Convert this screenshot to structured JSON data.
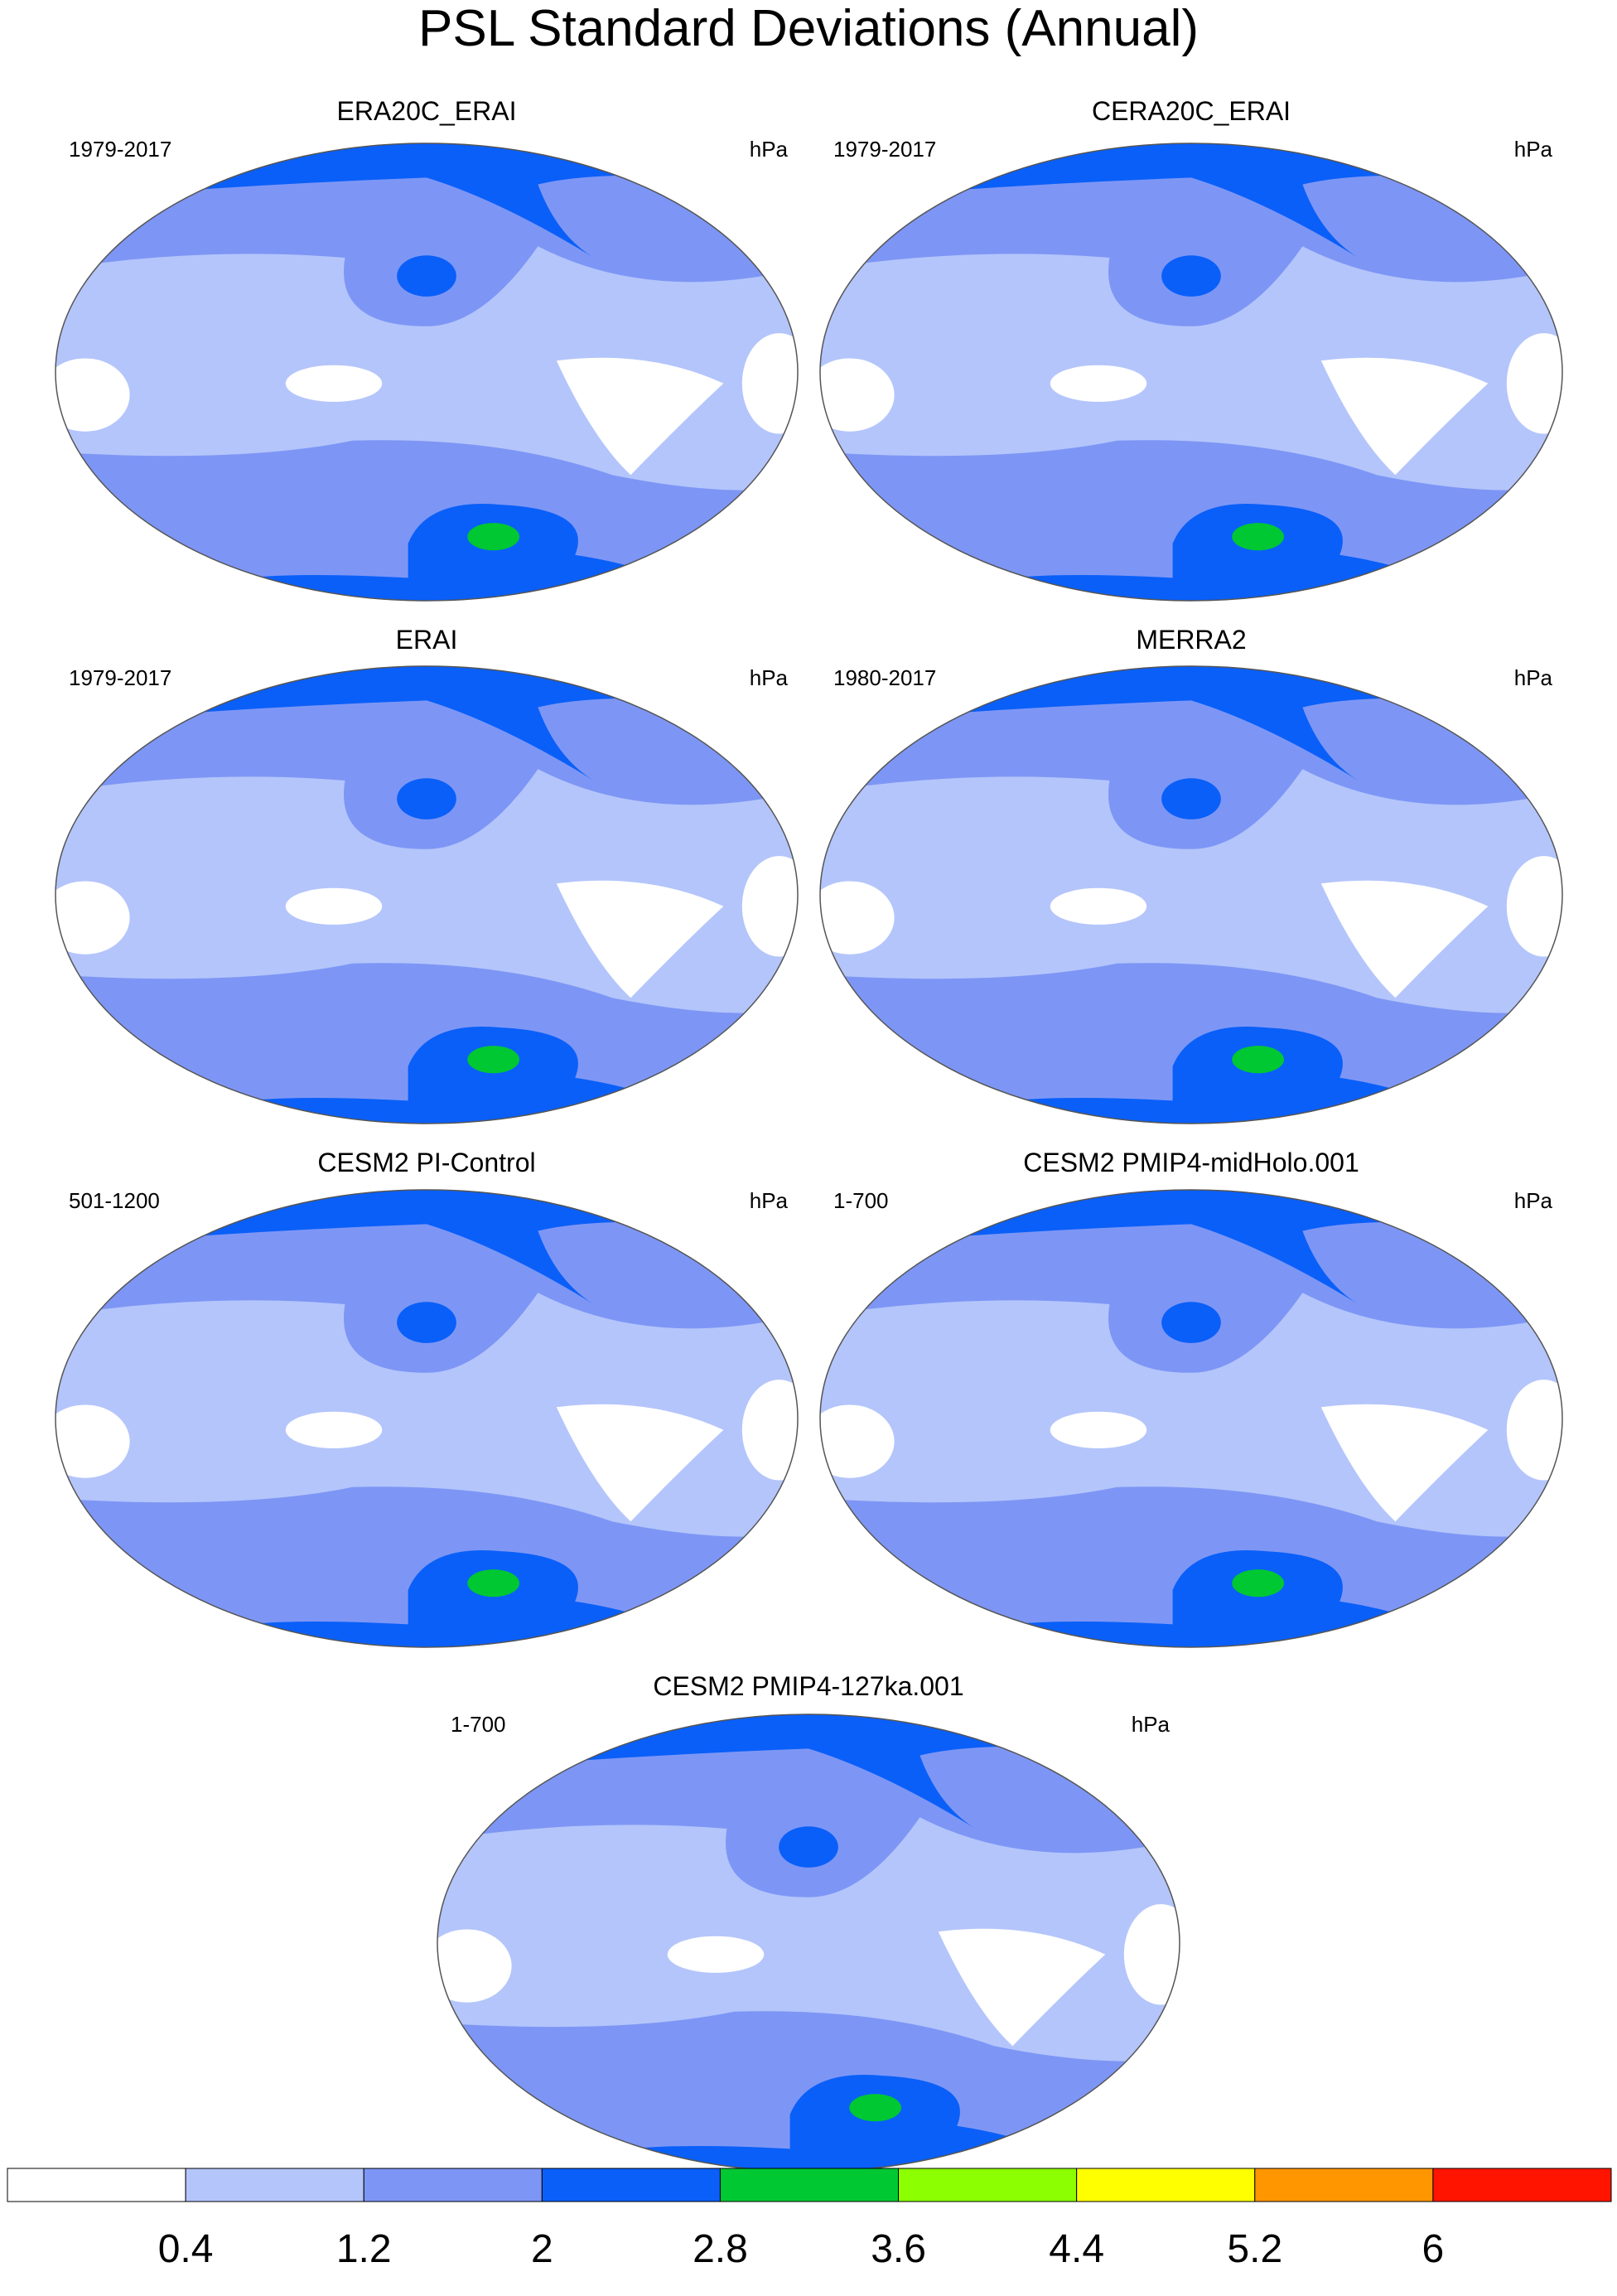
{
  "title": "PSL Standard Deviations (Annual)",
  "panels": [
    {
      "title": "ERA20C_ERAI",
      "period": "1979-2017",
      "units": "hPa"
    },
    {
      "title": "CERA20C_ERAI",
      "period": "1979-2017",
      "units": "hPa"
    },
    {
      "title": "ERAI",
      "period": "1979-2017",
      "units": "hPa"
    },
    {
      "title": "MERRA2",
      "period": "1980-2017",
      "units": "hPa"
    },
    {
      "title": "CESM2 PI-Control",
      "period": "501-1200",
      "units": "hPa"
    },
    {
      "title": "CESM2 PMIP4-midHolo.001",
      "period": "1-700",
      "units": "hPa"
    },
    {
      "title": "CESM2 PMIP4-127ka.001",
      "period": "1-700",
      "units": "hPa"
    }
  ],
  "colorbar": {
    "colors": [
      "#ffffff",
      "#b4c5fb",
      "#7d96f5",
      "#0a5ff8",
      "#00c832",
      "#8cff00",
      "#ffff00",
      "#ff9600",
      "#ff1400"
    ],
    "ticks": [
      0.4,
      1.2,
      2,
      2.8,
      3.6,
      4.4,
      5.2,
      6
    ]
  }
}
